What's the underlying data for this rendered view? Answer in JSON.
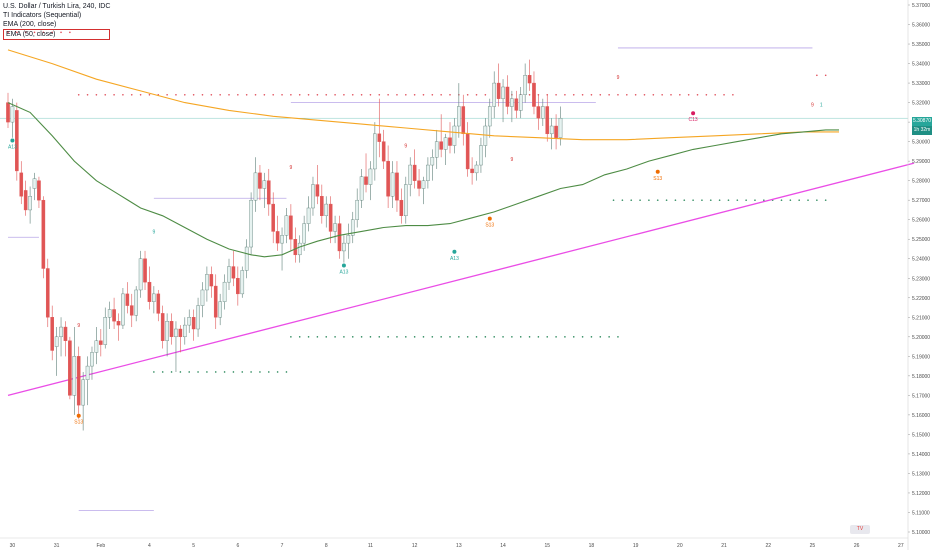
{
  "legend": {
    "title": "U.S. Dollar / Turkish Lira, 240, IDC",
    "indicator1": "TI Indicators (Sequential)",
    "indicator2": "EMA (200, close)",
    "indicator3": "EMA (50, close)"
  },
  "colors": {
    "bull": "#e6f2f0",
    "bull_border": "#5e7f78",
    "bear": "#e05555",
    "bear_border": "#c0392b",
    "ema200": "#f5a623",
    "ema50": "#4e8c45",
    "trendline": "#ea4de6",
    "support_dots": "#2e8a5e",
    "resistance_dots": "#e04e5a",
    "level_lines": "#b9a6e8",
    "last_price": "#26a69a",
    "td_green": "#26a69a",
    "td_red": "#d32f2f",
    "td_orange": "#ef6c00",
    "td_pink": "#d81b60"
  },
  "price_tag": {
    "line1": "5.30870",
    "line2": "1h 32m 11s"
  },
  "watermark": "TV",
  "chart_data": {
    "type": "candlestick",
    "ylim": [
      5.1,
      5.37
    ],
    "y_ticks": [
      "5.37000",
      "5.36000",
      "5.35000",
      "5.34000",
      "5.33000",
      "5.32000",
      "5.31000",
      "5.30000",
      "5.29000",
      "5.28000",
      "5.27000",
      "5.26000",
      "5.25000",
      "5.24000",
      "5.23000",
      "5.22000",
      "5.21000",
      "5.20000",
      "5.19000",
      "5.18000",
      "5.17000",
      "5.16000",
      "5.15000",
      "5.14000",
      "5.13000",
      "5.12000",
      "5.11000",
      "5.10000"
    ],
    "x_ticks": [
      {
        "label": "30",
        "bar": 1
      },
      {
        "label": "31",
        "bar": 11
      },
      {
        "label": "Feb",
        "bar": 21
      },
      {
        "label": "4",
        "bar": 32
      },
      {
        "label": "5",
        "bar": 42
      },
      {
        "label": "6",
        "bar": 52
      },
      {
        "label": "7",
        "bar": 62
      },
      {
        "label": "8",
        "bar": 72
      },
      {
        "label": "11",
        "bar": 82
      },
      {
        "label": "12",
        "bar": 92
      },
      {
        "label": "13",
        "bar": 102
      },
      {
        "label": "14",
        "bar": 112
      },
      {
        "label": "15",
        "bar": 122
      },
      {
        "label": "18",
        "bar": 132
      },
      {
        "label": "19",
        "bar": 142
      },
      {
        "label": "20",
        "bar": 152
      },
      {
        "label": "21",
        "bar": 162
      },
      {
        "label": "22",
        "bar": 172
      },
      {
        "label": "25",
        "bar": 182
      },
      {
        "label": "26",
        "bar": 192
      },
      {
        "label": "27",
        "bar": 202
      }
    ],
    "candles": [
      [
        5.32,
        5.325,
        5.307,
        5.31
      ],
      [
        5.31,
        5.322,
        5.302,
        5.318
      ],
      [
        5.316,
        5.32,
        5.28,
        5.285
      ],
      [
        5.284,
        5.29,
        5.268,
        5.272
      ],
      [
        5.275,
        5.28,
        5.262,
        5.265
      ],
      [
        5.265,
        5.277,
        5.258,
        5.272
      ],
      [
        5.276,
        5.284,
        5.27,
        5.281
      ],
      [
        5.28,
        5.282,
        5.266,
        5.27
      ],
      [
        5.27,
        5.272,
        5.23,
        5.235
      ],
      [
        5.235,
        5.24,
        5.205,
        5.21
      ],
      [
        5.21,
        5.216,
        5.188,
        5.193
      ],
      [
        5.195,
        5.205,
        5.18,
        5.2
      ],
      [
        5.2,
        5.21,
        5.19,
        5.205
      ],
      [
        5.205,
        5.208,
        5.19,
        5.198
      ],
      [
        5.198,
        5.2,
        5.168,
        5.17
      ],
      [
        5.17,
        5.205,
        5.16,
        5.19
      ],
      [
        5.19,
        5.195,
        5.158,
        5.165
      ],
      [
        5.165,
        5.182,
        5.152,
        5.178
      ],
      [
        5.178,
        5.19,
        5.165,
        5.185
      ],
      [
        5.185,
        5.195,
        5.178,
        5.192
      ],
      [
        5.192,
        5.205,
        5.186,
        5.198
      ],
      [
        5.198,
        5.204,
        5.19,
        5.196
      ],
      [
        5.196,
        5.215,
        5.194,
        5.21
      ],
      [
        5.21,
        5.218,
        5.204,
        5.214
      ],
      [
        5.214,
        5.22,
        5.204,
        5.208
      ],
      [
        5.208,
        5.212,
        5.198,
        5.206
      ],
      [
        5.206,
        5.225,
        5.204,
        5.222
      ],
      [
        5.222,
        5.228,
        5.212,
        5.216
      ],
      [
        5.216,
        5.222,
        5.205,
        5.211
      ],
      [
        5.211,
        5.226,
        5.208,
        5.224
      ],
      [
        5.224,
        5.244,
        5.22,
        5.24
      ],
      [
        5.24,
        5.244,
        5.224,
        5.228
      ],
      [
        5.228,
        5.236,
        5.214,
        5.218
      ],
      [
        5.218,
        5.226,
        5.212,
        5.222
      ],
      [
        5.222,
        5.224,
        5.208,
        5.212
      ],
      [
        5.212,
        5.216,
        5.194,
        5.198
      ],
      [
        5.198,
        5.212,
        5.19,
        5.208
      ],
      [
        5.208,
        5.212,
        5.196,
        5.2
      ],
      [
        5.2,
        5.208,
        5.182,
        5.204
      ],
      [
        5.204,
        5.206,
        5.192,
        5.2
      ],
      [
        5.2,
        5.21,
        5.196,
        5.206
      ],
      [
        5.206,
        5.214,
        5.202,
        5.21
      ],
      [
        5.21,
        5.214,
        5.198,
        5.204
      ],
      [
        5.204,
        5.22,
        5.2,
        5.216
      ],
      [
        5.216,
        5.228,
        5.21,
        5.224
      ],
      [
        5.224,
        5.236,
        5.218,
        5.232
      ],
      [
        5.232,
        5.236,
        5.22,
        5.226
      ],
      [
        5.226,
        5.232,
        5.204,
        5.21
      ],
      [
        5.21,
        5.222,
        5.206,
        5.218
      ],
      [
        5.218,
        5.232,
        5.214,
        5.228
      ],
      [
        5.228,
        5.24,
        5.224,
        5.236
      ],
      [
        5.236,
        5.244,
        5.226,
        5.23
      ],
      [
        5.23,
        5.236,
        5.216,
        5.222
      ],
      [
        5.222,
        5.236,
        5.22,
        5.234
      ],
      [
        5.234,
        5.25,
        5.23,
        5.246
      ],
      [
        5.246,
        5.274,
        5.242,
        5.27
      ],
      [
        5.27,
        5.292,
        5.264,
        5.284
      ],
      [
        5.284,
        5.288,
        5.27,
        5.276
      ],
      [
        5.276,
        5.284,
        5.266,
        5.28
      ],
      [
        5.28,
        5.286,
        5.262,
        5.268
      ],
      [
        5.268,
        5.274,
        5.248,
        5.254
      ],
      [
        5.254,
        5.262,
        5.244,
        5.248
      ],
      [
        5.248,
        5.256,
        5.234,
        5.252
      ],
      [
        5.252,
        5.266,
        5.248,
        5.262
      ],
      [
        5.262,
        5.268,
        5.244,
        5.25
      ],
      [
        5.25,
        5.256,
        5.238,
        5.242
      ],
      [
        5.242,
        5.252,
        5.238,
        5.248
      ],
      [
        5.248,
        5.262,
        5.244,
        5.258
      ],
      [
        5.258,
        5.272,
        5.254,
        5.266
      ],
      [
        5.266,
        5.282,
        5.262,
        5.278
      ],
      [
        5.278,
        5.288,
        5.268,
        5.272
      ],
      [
        5.272,
        5.278,
        5.258,
        5.262
      ],
      [
        5.262,
        5.272,
        5.256,
        5.268
      ],
      [
        5.268,
        5.272,
        5.248,
        5.254
      ],
      [
        5.254,
        5.262,
        5.248,
        5.258
      ],
      [
        5.258,
        5.262,
        5.24,
        5.244
      ],
      [
        5.244,
        5.252,
        5.238,
        5.248
      ],
      [
        5.248,
        5.258,
        5.24,
        5.252
      ],
      [
        5.252,
        5.264,
        5.248,
        5.26
      ],
      [
        5.26,
        5.276,
        5.256,
        5.27
      ],
      [
        5.27,
        5.286,
        5.266,
        5.282
      ],
      [
        5.282,
        5.294,
        5.274,
        5.278
      ],
      [
        5.278,
        5.29,
        5.27,
        5.286
      ],
      [
        5.286,
        5.31,
        5.28,
        5.304
      ],
      [
        5.304,
        5.322,
        5.292,
        5.3
      ],
      [
        5.3,
        5.306,
        5.286,
        5.29
      ],
      [
        5.29,
        5.298,
        5.266,
        5.272
      ],
      [
        5.272,
        5.29,
        5.266,
        5.284
      ],
      [
        5.284,
        5.29,
        5.264,
        5.27
      ],
      [
        5.27,
        5.276,
        5.258,
        5.262
      ],
      [
        5.262,
        5.282,
        5.258,
        5.278
      ],
      [
        5.278,
        5.292,
        5.272,
        5.288
      ],
      [
        5.288,
        5.296,
        5.276,
        5.28
      ],
      [
        5.28,
        5.286,
        5.272,
        5.276
      ],
      [
        5.276,
        5.282,
        5.268,
        5.28
      ],
      [
        5.28,
        5.292,
        5.276,
        5.288
      ],
      [
        5.288,
        5.296,
        5.28,
        5.292
      ],
      [
        5.292,
        5.306,
        5.286,
        5.3
      ],
      [
        5.3,
        5.314,
        5.292,
        5.296
      ],
      [
        5.296,
        5.304,
        5.288,
        5.302
      ],
      [
        5.302,
        5.31,
        5.294,
        5.298
      ],
      [
        5.298,
        5.312,
        5.294,
        5.308
      ],
      [
        5.308,
        5.33,
        5.302,
        5.318
      ],
      [
        5.318,
        5.324,
        5.298,
        5.304
      ],
      [
        5.304,
        5.31,
        5.282,
        5.286
      ],
      [
        5.286,
        5.292,
        5.278,
        5.284
      ],
      [
        5.284,
        5.29,
        5.28,
        5.288
      ],
      [
        5.288,
        5.302,
        5.284,
        5.298
      ],
      [
        5.298,
        5.312,
        5.292,
        5.308
      ],
      [
        5.308,
        5.322,
        5.302,
        5.318
      ],
      [
        5.318,
        5.336,
        5.312,
        5.33
      ],
      [
        5.33,
        5.34,
        5.318,
        5.322
      ],
      [
        5.322,
        5.332,
        5.31,
        5.328
      ],
      [
        5.328,
        5.334,
        5.314,
        5.318
      ],
      [
        5.318,
        5.326,
        5.31,
        5.322
      ],
      [
        5.322,
        5.326,
        5.312,
        5.316
      ],
      [
        5.316,
        5.328,
        5.312,
        5.324
      ],
      [
        5.324,
        5.34,
        5.32,
        5.334
      ],
      [
        5.334,
        5.342,
        5.326,
        5.33
      ],
      [
        5.33,
        5.336,
        5.314,
        5.318
      ],
      [
        5.318,
        5.324,
        5.306,
        5.312
      ],
      [
        5.312,
        5.322,
        5.308,
        5.318
      ],
      [
        5.318,
        5.324,
        5.3,
        5.304
      ],
      [
        5.304,
        5.312,
        5.296,
        5.308
      ],
      [
        5.308,
        5.314,
        5.296,
        5.302
      ],
      [
        5.302,
        5.318,
        5.298,
        5.312
      ]
    ],
    "ema200": [
      [
        0,
        5.347
      ],
      [
        10,
        5.34
      ],
      [
        20,
        5.332
      ],
      [
        30,
        5.326
      ],
      [
        40,
        5.32
      ],
      [
        50,
        5.316
      ],
      [
        60,
        5.313
      ],
      [
        70,
        5.311
      ],
      [
        80,
        5.309
      ],
      [
        90,
        5.307
      ],
      [
        100,
        5.305
      ],
      [
        110,
        5.303
      ],
      [
        120,
        5.302
      ],
      [
        130,
        5.301
      ],
      [
        140,
        5.301
      ],
      [
        150,
        5.302
      ],
      [
        160,
        5.303
      ],
      [
        170,
        5.304
      ],
      [
        180,
        5.305
      ],
      [
        188,
        5.305
      ]
    ],
    "ema50": [
      [
        0,
        5.32
      ],
      [
        5,
        5.315
      ],
      [
        10,
        5.303
      ],
      [
        15,
        5.29
      ],
      [
        20,
        5.28
      ],
      [
        25,
        5.273
      ],
      [
        30,
        5.266
      ],
      [
        35,
        5.262
      ],
      [
        40,
        5.256
      ],
      [
        45,
        5.25
      ],
      [
        50,
        5.245
      ],
      [
        55,
        5.242
      ],
      [
        58,
        5.241
      ],
      [
        62,
        5.242
      ],
      [
        66,
        5.246
      ],
      [
        70,
        5.249
      ],
      [
        75,
        5.252
      ],
      [
        80,
        5.254
      ],
      [
        85,
        5.256
      ],
      [
        90,
        5.257
      ],
      [
        95,
        5.257
      ],
      [
        100,
        5.258
      ],
      [
        105,
        5.261
      ],
      [
        110,
        5.264
      ],
      [
        115,
        5.268
      ],
      [
        120,
        5.272
      ],
      [
        125,
        5.276
      ],
      [
        130,
        5.278
      ],
      [
        135,
        5.283
      ],
      [
        140,
        5.286
      ],
      [
        145,
        5.29
      ],
      [
        150,
        5.293
      ],
      [
        155,
        5.296
      ],
      [
        160,
        5.298
      ],
      [
        165,
        5.3
      ],
      [
        170,
        5.302
      ],
      [
        175,
        5.304
      ],
      [
        180,
        5.305
      ],
      [
        185,
        5.306
      ],
      [
        188,
        5.306
      ]
    ],
    "trendline": {
      "from": [
        0,
        5.17
      ],
      "to": [
        205,
        5.289
      ]
    },
    "level_lines": [
      {
        "y": 5.251,
        "x0": 0,
        "x1": 7
      },
      {
        "y": 5.32,
        "x0": 64,
        "x1": 133
      },
      {
        "y": 5.271,
        "x0": 33,
        "x1": 63
      },
      {
        "y": 5.111,
        "x0": 16,
        "x1": 33
      },
      {
        "y": 5.348,
        "x0": 138,
        "x1": 182
      }
    ],
    "dotted_levels": [
      {
        "y": 5.356,
        "x0": 0,
        "x1": 15,
        "kind": "resistance"
      },
      {
        "y": 5.324,
        "x0": 16,
        "x1": 165,
        "kind": "resistance"
      },
      {
        "y": 5.334,
        "x0": 183,
        "x1": 186,
        "kind": "resistance"
      },
      {
        "y": 5.27,
        "x0": 137,
        "x1": 186,
        "kind": "support"
      },
      {
        "y": 5.2,
        "x0": 64,
        "x1": 138,
        "kind": "support"
      },
      {
        "y": 5.182,
        "x0": 33,
        "x1": 63,
        "kind": "support"
      }
    ],
    "td_labels": [
      {
        "bar": 1,
        "price": 5.298,
        "text": "A13",
        "color": "td_green"
      },
      {
        "bar": 16,
        "price": 5.157,
        "text": "S13",
        "color": "td_orange"
      },
      {
        "bar": 76,
        "price": 5.234,
        "text": "A13",
        "color": "td_green"
      },
      {
        "bar": 101,
        "price": 5.241,
        "text": "A13",
        "color": "td_green"
      },
      {
        "bar": 109,
        "price": 5.258,
        "text": "S13",
        "color": "td_orange"
      },
      {
        "bar": 155,
        "price": 5.312,
        "text": "C13",
        "color": "td_pink"
      },
      {
        "bar": 147,
        "price": 5.282,
        "text": "S13",
        "color": "td_orange"
      }
    ],
    "td_nines": [
      {
        "bar": 16,
        "price": 5.205,
        "text": "9",
        "color": "td_red"
      },
      {
        "bar": 64,
        "price": 5.286,
        "text": "9",
        "color": "td_red"
      },
      {
        "bar": 90,
        "price": 5.297,
        "text": "9",
        "color": "td_red"
      },
      {
        "bar": 114,
        "price": 5.29,
        "text": "9",
        "color": "td_red"
      },
      {
        "bar": 138,
        "price": 5.332,
        "text": "9",
        "color": "td_red"
      },
      {
        "bar": 182,
        "price": 5.318,
        "text": "9",
        "color": "td_red"
      },
      {
        "bar": 33,
        "price": 5.253,
        "text": "9",
        "color": "td_green"
      },
      {
        "bar": 184,
        "price": 5.318,
        "text": "1",
        "color": "td_green"
      }
    ]
  }
}
